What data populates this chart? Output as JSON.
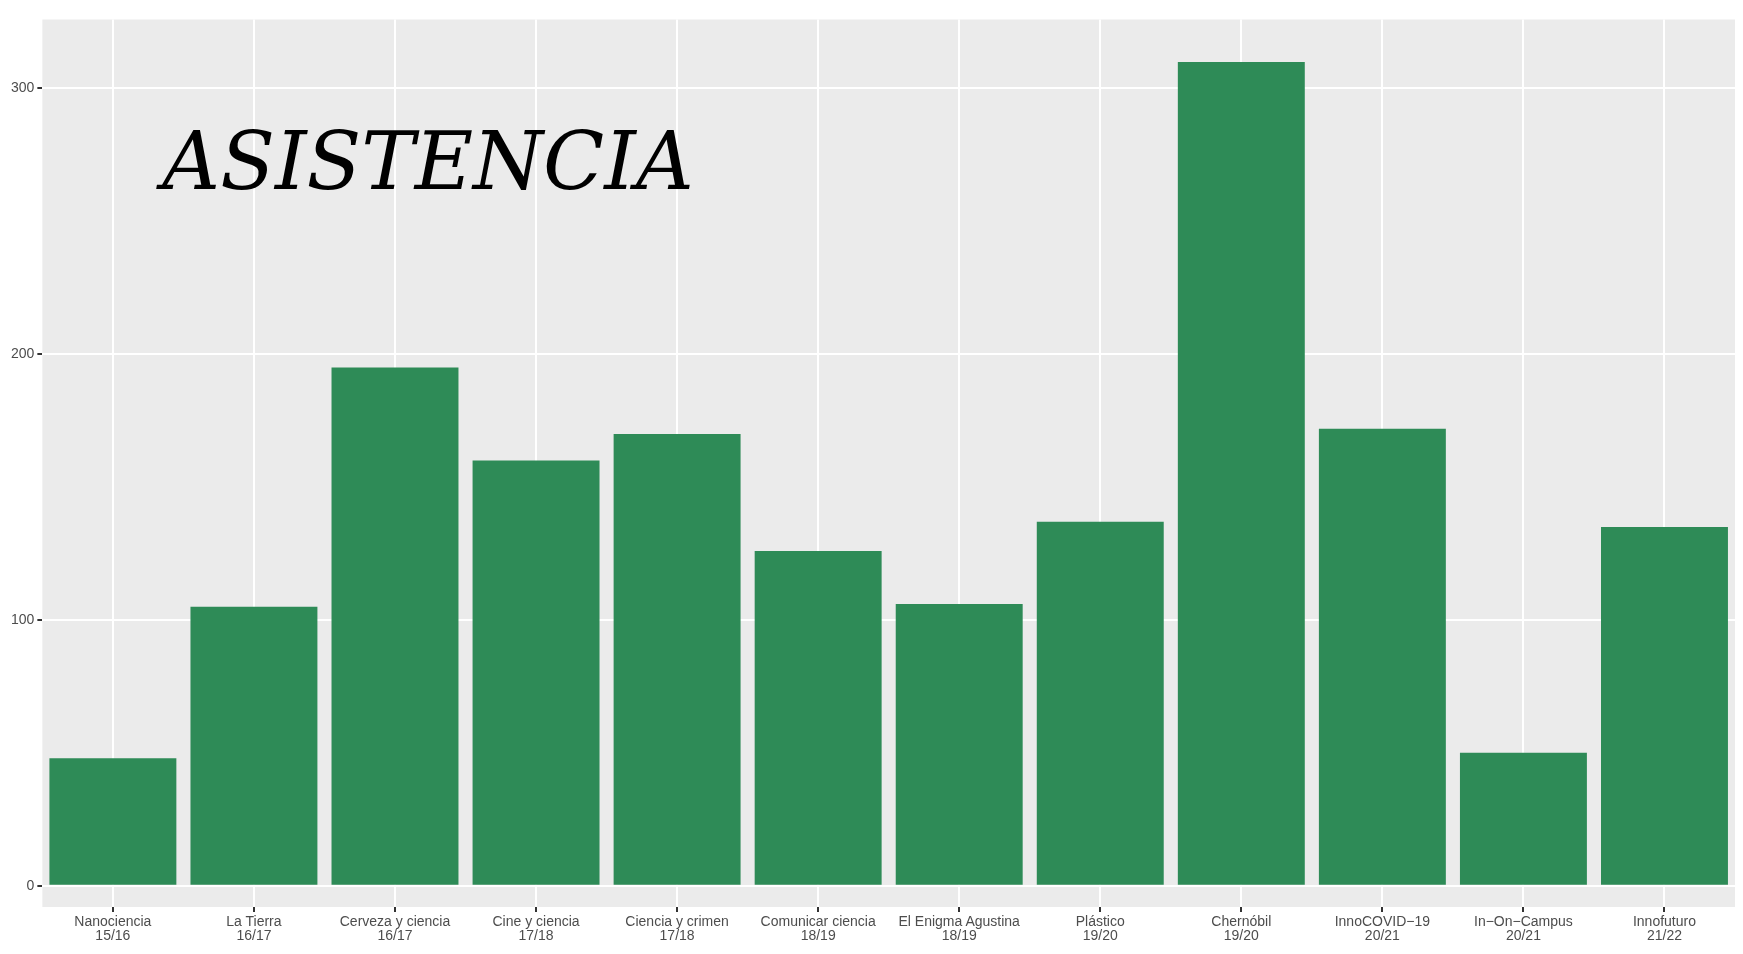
{
  "chart_data": {
    "type": "bar",
    "title": "ASISTENCIA",
    "categories": [
      "Nanociencia\n15/16",
      "La Tierra\n16/17",
      "Cerveza y ciencia\n16/17",
      "Cine y ciencia\n17/18",
      "Ciencia y crimen\n17/18",
      "Comunicar ciencia\n18/19",
      "El Enigma Agustina\n18/19",
      "Plástico\n19/20",
      "Chernóbil\n19/20",
      "InnoCOVID−19\n20/21",
      "In−On−Campus\n20/21",
      "Innofuturo\n21/22"
    ],
    "values": [
      48,
      105,
      195,
      160,
      170,
      126,
      106,
      137,
      310,
      172,
      50,
      135
    ],
    "color": "#2e8b57",
    "ylim": [
      -8,
      326
    ],
    "yticks": [
      0,
      100,
      200,
      300
    ],
    "grid": true
  }
}
